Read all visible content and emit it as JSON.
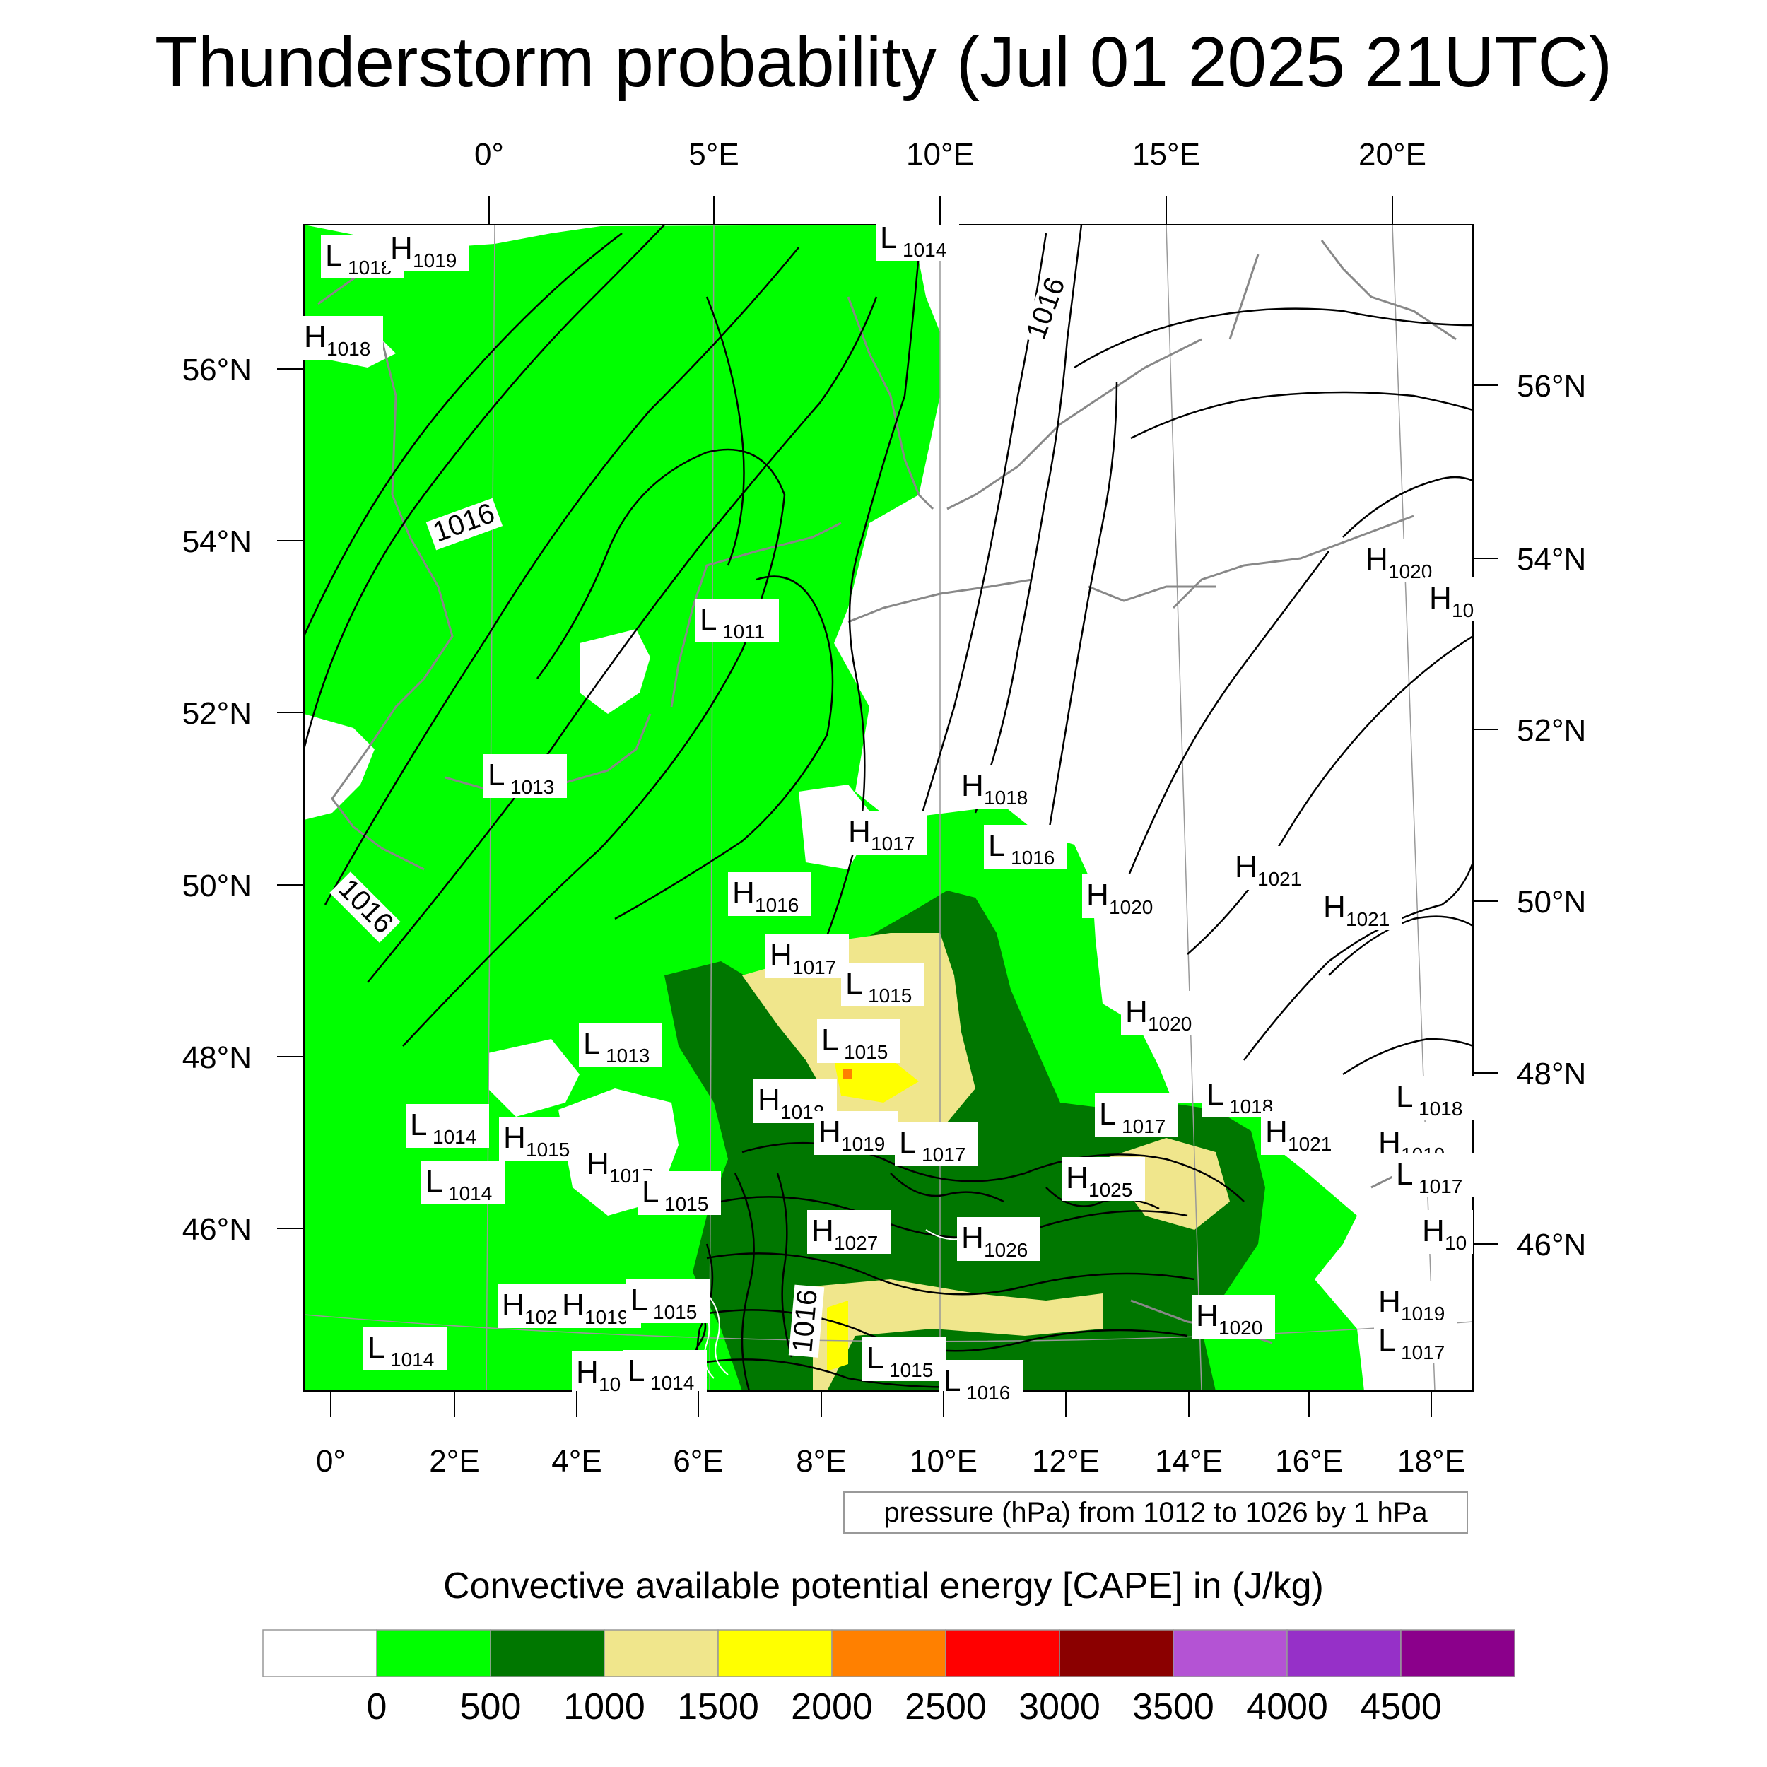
{
  "title": "Thunderstorm probability (Jul 01 2025 21UTC)",
  "top_lon_labels": [
    "0°",
    "5°E",
    "10°E",
    "15°E",
    "20°E"
  ],
  "bottom_lon_labels": [
    "0°",
    "2°E",
    "4°E",
    "6°E",
    "8°E",
    "10°E",
    "12°E",
    "14°E",
    "16°E",
    "18°E"
  ],
  "left_lat_labels": [
    "56°N",
    "54°N",
    "52°N",
    "50°N",
    "48°N",
    "46°N"
  ],
  "right_lat_labels": [
    "56°N",
    "54°N",
    "52°N",
    "50°N",
    "48°N",
    "46°N"
  ],
  "isobar_labels": [
    "1016",
    "1016",
    "1016",
    "1016"
  ],
  "pressure_centers": [
    {
      "t": "L",
      "v": "1018"
    },
    {
      "t": "H",
      "v": "1019"
    },
    {
      "t": "H",
      "v": "1018"
    },
    {
      "t": "L",
      "v": "1014"
    },
    {
      "t": "L",
      "v": "1011"
    },
    {
      "t": "L",
      "v": "1013"
    },
    {
      "t": "H",
      "v": "1018"
    },
    {
      "t": "H",
      "v": "1017"
    },
    {
      "t": "L",
      "v": "1016"
    },
    {
      "t": "H",
      "v": "1016"
    },
    {
      "t": "H",
      "v": "1020"
    },
    {
      "t": "H",
      "v": "1021"
    },
    {
      "t": "H",
      "v": "1021"
    },
    {
      "t": "H",
      "v": "1020"
    },
    {
      "t": "H",
      "v": "10"
    },
    {
      "t": "H",
      "v": "1017"
    },
    {
      "t": "L",
      "v": "1015"
    },
    {
      "t": "H",
      "v": "1020"
    },
    {
      "t": "L",
      "v": "1015"
    },
    {
      "t": "L",
      "v": "1013"
    },
    {
      "t": "L",
      "v": "1018"
    },
    {
      "t": "L",
      "v": "1018"
    },
    {
      "t": "H",
      "v": "1018"
    },
    {
      "t": "H",
      "v": "1019"
    },
    {
      "t": "L",
      "v": "1017"
    },
    {
      "t": "L",
      "v": "1017"
    },
    {
      "t": "H",
      "v": "1021"
    },
    {
      "t": "H",
      "v": "1019"
    },
    {
      "t": "L",
      "v": "1017"
    },
    {
      "t": "L",
      "v": "1014"
    },
    {
      "t": "H",
      "v": "1015"
    },
    {
      "t": "H",
      "v": "1017"
    },
    {
      "t": "L",
      "v": "1014"
    },
    {
      "t": "L",
      "v": "1015"
    },
    {
      "t": "H",
      "v": "1025"
    },
    {
      "t": "H",
      "v": "1027"
    },
    {
      "t": "H",
      "v": "1026"
    },
    {
      "t": "H",
      "v": "10"
    },
    {
      "t": "H",
      "v": "102"
    },
    {
      "t": "H",
      "v": "1019"
    },
    {
      "t": "L",
      "v": "1015"
    },
    {
      "t": "H",
      "v": "1019"
    },
    {
      "t": "H",
      "v": "1020"
    },
    {
      "t": "L",
      "v": "1017"
    },
    {
      "t": "L",
      "v": "1014"
    },
    {
      "t": "H",
      "v": "10"
    },
    {
      "t": "L",
      "v": "1014"
    },
    {
      "t": "L",
      "v": "1015"
    },
    {
      "t": "L",
      "v": "1016"
    }
  ],
  "pressure_note": "pressure (hPa) from 1012 to 1026 by 1 hPa",
  "colorbar": {
    "title": "Convective available potential energy [CAPE] in (J/kg)",
    "tick_labels": [
      "0",
      "500",
      "1000",
      "1500",
      "2000",
      "2500",
      "3000",
      "3500",
      "4000",
      "4500"
    ],
    "colors": [
      "#ffffff",
      "#00ff00",
      "#007700",
      "#f0e68c",
      "#ffff00",
      "#ff8000",
      "#ff0000",
      "#8b0000",
      "#b453d4",
      "#9630c8",
      "#8b008b"
    ]
  },
  "colors": {
    "cape_low": "#00ff00",
    "cape_mid": "#007700",
    "cape_1000": "#f0e68c",
    "cape_1500": "#ffff00",
    "cape_2000": "#ff8000",
    "coast": "#888888",
    "isobar": "#000000"
  }
}
